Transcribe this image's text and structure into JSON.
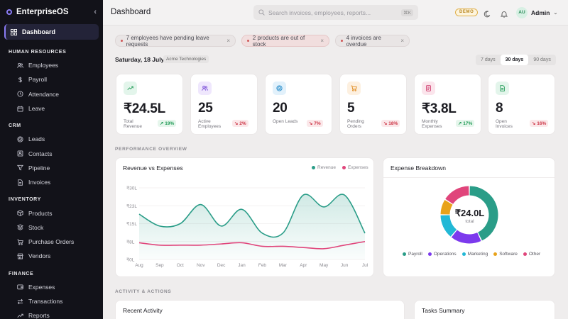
{
  "app": {
    "name": "EnterpriseOS",
    "collapse_icon": "chevron-left-icon"
  },
  "sidebar": {
    "active": {
      "label": "Dashboard",
      "icon": "grid-icon"
    },
    "sections": [
      {
        "title": "HUMAN RESOURCES",
        "items": [
          {
            "label": "Employees",
            "icon": "users-icon"
          },
          {
            "label": "Payroll",
            "icon": "dollar-icon"
          },
          {
            "label": "Attendance",
            "icon": "clock-icon"
          },
          {
            "label": "Leave",
            "icon": "calendar-icon"
          }
        ]
      },
      {
        "title": "CRM",
        "items": [
          {
            "label": "Leads",
            "icon": "target-icon"
          },
          {
            "label": "Contacts",
            "icon": "contact-icon"
          },
          {
            "label": "Pipeline",
            "icon": "funnel-icon"
          },
          {
            "label": "Invoices",
            "icon": "file-icon"
          }
        ]
      },
      {
        "title": "INVENTORY",
        "items": [
          {
            "label": "Products",
            "icon": "box-icon"
          },
          {
            "label": "Stock",
            "icon": "layers-icon"
          },
          {
            "label": "Purchase Orders",
            "icon": "cart-icon"
          },
          {
            "label": "Vendors",
            "icon": "store-icon"
          }
        ]
      },
      {
        "title": "FINANCE",
        "items": [
          {
            "label": "Expenses",
            "icon": "wallet-icon"
          },
          {
            "label": "Transactions",
            "icon": "swap-icon"
          },
          {
            "label": "Reports",
            "icon": "trend-icon"
          }
        ]
      }
    ]
  },
  "header": {
    "title": "Dashboard",
    "search_placeholder": "Search invoices, employees, reports...",
    "shortcut": "⌘K",
    "demo_badge": "DEMO",
    "user": {
      "initials": "AU",
      "name": "Admin"
    }
  },
  "alerts": [
    {
      "text": "7 employees have pending leave requests"
    },
    {
      "text": "2 products are out of stock"
    },
    {
      "text": "4 invoices are overdue"
    }
  ],
  "context": {
    "date": "Saturday, 18 July",
    "company": "Acme Technologies",
    "ranges": [
      "7 days",
      "30 days",
      "90 days"
    ],
    "selected_range": "30 days"
  },
  "kpis": [
    {
      "value": "₹24.5L",
      "label": "Total Revenue",
      "change": "19%",
      "dir": "up",
      "icon": "trend-icon",
      "color": "#1f9a55",
      "bg": "#e3f5eb"
    },
    {
      "value": "25",
      "label": "Active Employees",
      "change": "2%",
      "dir": "down",
      "icon": "users-icon",
      "color": "#7a4fd8",
      "bg": "#efe7fd"
    },
    {
      "value": "20",
      "label": "Open Leads",
      "change": "7%",
      "dir": "down",
      "icon": "target-icon",
      "color": "#1e88c8",
      "bg": "#e2f1fb"
    },
    {
      "value": "5",
      "label": "Pending Orders",
      "change": "18%",
      "dir": "down",
      "icon": "cart-icon",
      "color": "#e08a1e",
      "bg": "#fdf0e0"
    },
    {
      "value": "₹3.8L",
      "label": "Monthly Expenses",
      "change": "17%",
      "dir": "up",
      "icon": "receipt-icon",
      "color": "#cc3366",
      "bg": "#fbe5ec"
    },
    {
      "value": "8",
      "label": "Open Invoices",
      "change": "16%",
      "dir": "down",
      "icon": "file-icon",
      "color": "#1f9a55",
      "bg": "#e3f5eb"
    }
  ],
  "sections": {
    "performance": "PERFORMANCE OVERVIEW",
    "activity": "ACTIVITY & ACTIONS"
  },
  "revenue_chart": {
    "title": "Revenue vs Expenses",
    "legend": [
      {
        "name": "Revenue",
        "color": "#2a9d88"
      },
      {
        "name": "Expenses",
        "color": "#e0457b"
      }
    ]
  },
  "expense_breakdown": {
    "title": "Expense Breakdown",
    "center_value": "₹24.0L",
    "center_label": "total",
    "legend": [
      "Payroll",
      "Operations",
      "Marketing",
      "Software",
      "Other"
    ]
  },
  "bottom_panels": {
    "left_title": "Recent Activity",
    "right_title": "Tasks Summary"
  },
  "chart_data": [
    {
      "type": "area",
      "title": "Revenue vs Expenses",
      "categories": [
        "Aug",
        "Sep",
        "Oct",
        "Nov",
        "Dec",
        "Jan",
        "Feb",
        "Mar",
        "Apr",
        "May",
        "Jun",
        "Jul"
      ],
      "yticks": [
        "₹0L",
        "₹8L",
        "₹15L",
        "₹23L",
        "₹30L"
      ],
      "ylim": [
        0,
        30
      ],
      "series": [
        {
          "name": "Revenue",
          "values": [
            19,
            14,
            15,
            23,
            14,
            21,
            11,
            11,
            27,
            22,
            27,
            11
          ]
        },
        {
          "name": "Expenses",
          "values": [
            7,
            6,
            6,
            6,
            6.5,
            7,
            5.5,
            5.5,
            5,
            4.5,
            6,
            7.5
          ]
        }
      ]
    },
    {
      "type": "pie",
      "title": "Expense Breakdown",
      "categories": [
        "Payroll",
        "Operations",
        "Marketing",
        "Software",
        "Other"
      ],
      "values": [
        43,
        18,
        14,
        9,
        16
      ],
      "colors": [
        "#2a9d88",
        "#7c3aed",
        "#22b8d6",
        "#e8a21a",
        "#e0457b"
      ]
    }
  ]
}
